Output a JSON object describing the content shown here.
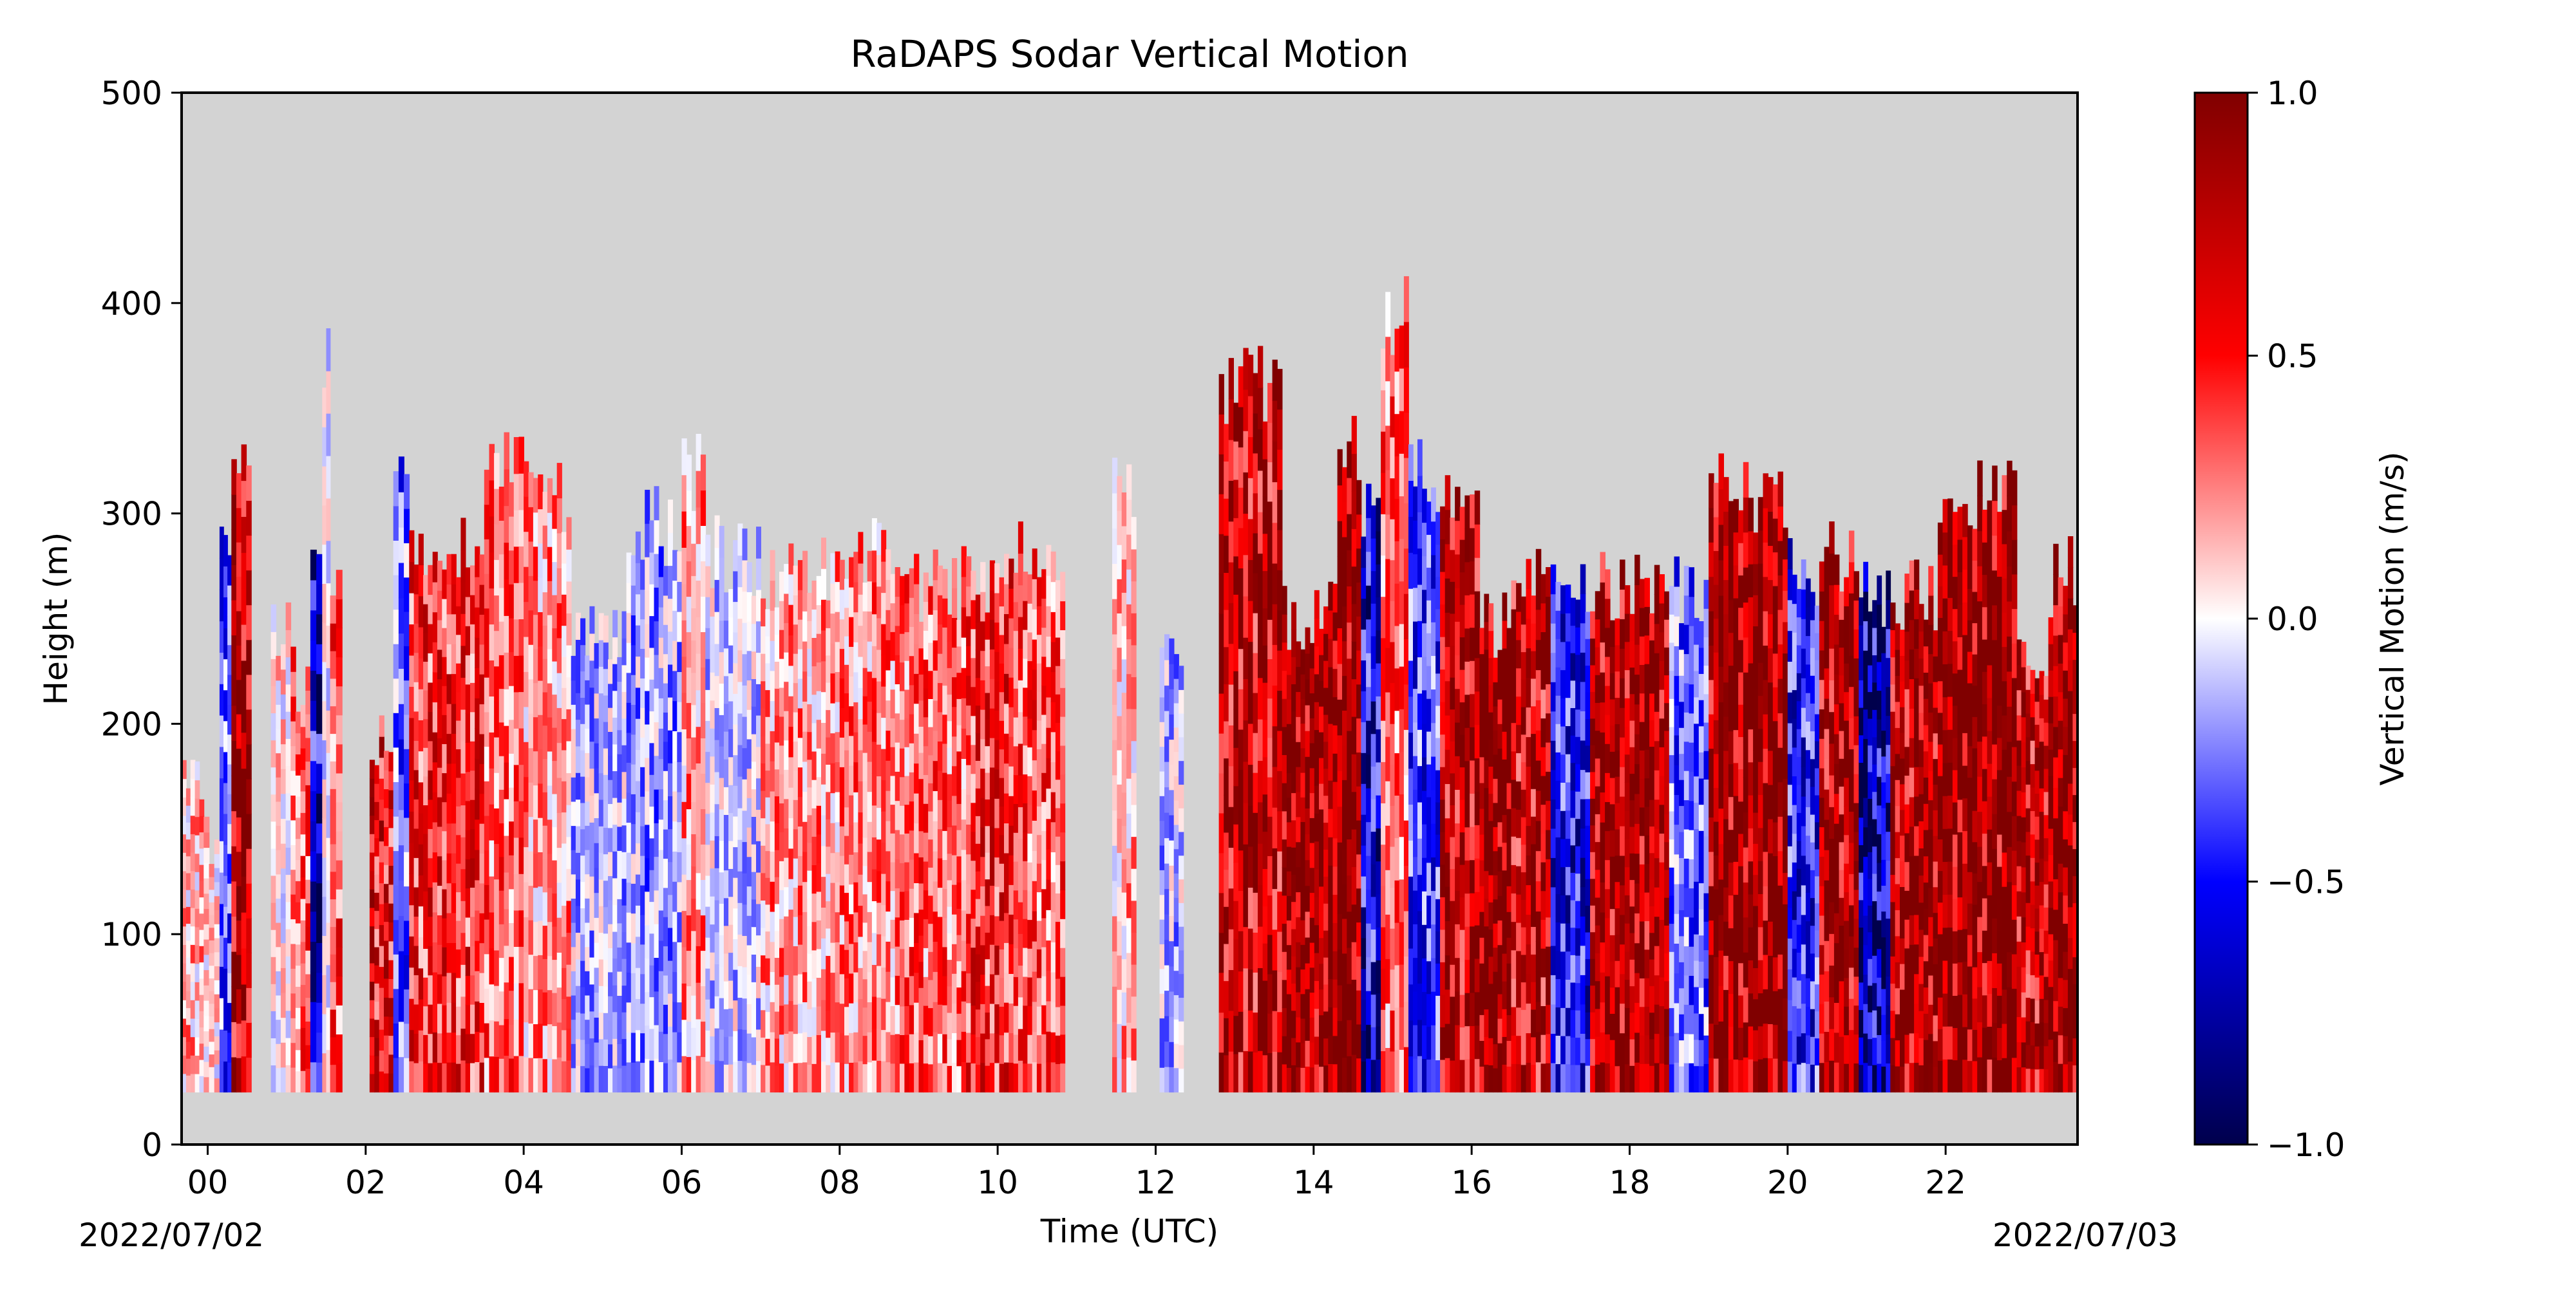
{
  "chart_data": {
    "type": "heatmap",
    "title": "RaDAPS Sodar Vertical Motion",
    "xlabel": "Time (UTC)",
    "ylabel": "Height (m)",
    "x_ticks": [
      "00",
      "02",
      "04",
      "06",
      "08",
      "10",
      "12",
      "14",
      "16",
      "18",
      "20",
      "22"
    ],
    "x_tick_hours": [
      0,
      2,
      4,
      6,
      8,
      10,
      12,
      14,
      16,
      18,
      20,
      22
    ],
    "x_range_hours": [
      -0.33,
      23.67
    ],
    "date_start": "2022/07/02",
    "date_end": "2022/07/03",
    "y_ticks": [
      0,
      100,
      200,
      300,
      400,
      500
    ],
    "ylim": [
      0,
      500
    ],
    "data_base_height": 25,
    "background_color": "#d3d3d3",
    "colorbar": {
      "label": "Vertical Motion (m/s)",
      "ticks": [
        "1.0",
        "0.5",
        "0.0",
        "−0.5",
        "−1.0"
      ],
      "tick_values": [
        1.0,
        0.5,
        0.0,
        -0.5,
        -1.0
      ],
      "range": [
        -1.0,
        1.0
      ],
      "colormap": "seismic"
    },
    "data_gaps_hours": [
      [
        0.55,
        0.8
      ],
      [
        1.7,
        2.05
      ],
      [
        10.85,
        11.45
      ],
      [
        11.75,
        12.05
      ],
      [
        12.35,
        12.8
      ]
    ],
    "segments": [
      {
        "start": -0.33,
        "end": -0.05,
        "top": 170,
        "mean": 0.15
      },
      {
        "start": -0.05,
        "end": 0.15,
        "top": 150,
        "mean": 0.05
      },
      {
        "start": 0.15,
        "end": 0.3,
        "top": 300,
        "mean": -0.35
      },
      {
        "start": 0.3,
        "end": 0.55,
        "top": 330,
        "mean": 0.75
      },
      {
        "start": 0.8,
        "end": 1.05,
        "top": 240,
        "mean": 0.05
      },
      {
        "start": 1.05,
        "end": 1.3,
        "top": 220,
        "mean": 0.3
      },
      {
        "start": 1.3,
        "end": 1.45,
        "top": 280,
        "mean": -0.65
      },
      {
        "start": 1.45,
        "end": 1.55,
        "top": 370,
        "mean": 0.0
      },
      {
        "start": 1.55,
        "end": 1.7,
        "top": 260,
        "mean": 0.35
      },
      {
        "start": 2.05,
        "end": 2.35,
        "top": 200,
        "mean": 0.55
      },
      {
        "start": 2.35,
        "end": 2.55,
        "top": 320,
        "mean": -0.3
      },
      {
        "start": 2.55,
        "end": 3.5,
        "top": 280,
        "mean": 0.45
      },
      {
        "start": 3.5,
        "end": 4.0,
        "top": 330,
        "mean": 0.3
      },
      {
        "start": 4.0,
        "end": 4.6,
        "top": 310,
        "mean": 0.2
      },
      {
        "start": 4.6,
        "end": 5.3,
        "top": 240,
        "mean": -0.15
      },
      {
        "start": 5.3,
        "end": 6.0,
        "top": 295,
        "mean": -0.2
      },
      {
        "start": 6.0,
        "end": 6.3,
        "top": 320,
        "mean": 0.2
      },
      {
        "start": 6.3,
        "end": 7.0,
        "top": 280,
        "mean": -0.1
      },
      {
        "start": 7.0,
        "end": 8.0,
        "top": 270,
        "mean": 0.2
      },
      {
        "start": 8.0,
        "end": 8.7,
        "top": 280,
        "mean": 0.25
      },
      {
        "start": 8.7,
        "end": 9.6,
        "top": 265,
        "mean": 0.3
      },
      {
        "start": 9.6,
        "end": 10.2,
        "top": 270,
        "mean": 0.45
      },
      {
        "start": 10.2,
        "end": 10.85,
        "top": 280,
        "mean": 0.35
      },
      {
        "start": 11.45,
        "end": 11.75,
        "top": 310,
        "mean": 0.15
      },
      {
        "start": 12.05,
        "end": 12.35,
        "top": 240,
        "mean": -0.15
      },
      {
        "start": 12.8,
        "end": 13.6,
        "top": 360,
        "mean": 0.7
      },
      {
        "start": 13.6,
        "end": 14.3,
        "top": 250,
        "mean": 0.85
      },
      {
        "start": 14.3,
        "end": 14.6,
        "top": 330,
        "mean": 0.9
      },
      {
        "start": 14.6,
        "end": 14.85,
        "top": 300,
        "mean": -0.6
      },
      {
        "start": 14.85,
        "end": 15.2,
        "top": 395,
        "mean": 0.3
      },
      {
        "start": 15.2,
        "end": 15.6,
        "top": 320,
        "mean": -0.4
      },
      {
        "start": 15.6,
        "end": 16.1,
        "top": 300,
        "mean": 0.75
      },
      {
        "start": 16.1,
        "end": 16.5,
        "top": 250,
        "mean": 0.9
      },
      {
        "start": 16.5,
        "end": 17.0,
        "top": 280,
        "mean": 0.7
      },
      {
        "start": 17.0,
        "end": 17.5,
        "top": 270,
        "mean": -0.5
      },
      {
        "start": 17.5,
        "end": 18.0,
        "top": 265,
        "mean": 0.8
      },
      {
        "start": 18.0,
        "end": 18.5,
        "top": 265,
        "mean": 0.85
      },
      {
        "start": 18.5,
        "end": 19.0,
        "top": 260,
        "mean": -0.3
      },
      {
        "start": 19.0,
        "end": 19.5,
        "top": 320,
        "mean": 0.85
      },
      {
        "start": 19.5,
        "end": 20.0,
        "top": 300,
        "mean": 0.9
      },
      {
        "start": 20.0,
        "end": 20.4,
        "top": 270,
        "mean": -0.45
      },
      {
        "start": 20.4,
        "end": 20.9,
        "top": 280,
        "mean": 0.8
      },
      {
        "start": 20.9,
        "end": 21.3,
        "top": 265,
        "mean": -0.75
      },
      {
        "start": 21.3,
        "end": 21.9,
        "top": 260,
        "mean": 0.8
      },
      {
        "start": 21.9,
        "end": 22.4,
        "top": 300,
        "mean": 0.9
      },
      {
        "start": 22.4,
        "end": 22.9,
        "top": 310,
        "mean": 0.85
      },
      {
        "start": 22.9,
        "end": 23.3,
        "top": 230,
        "mean": 0.7
      },
      {
        "start": 23.3,
        "end": 23.67,
        "top": 270,
        "mean": 0.9
      }
    ]
  }
}
